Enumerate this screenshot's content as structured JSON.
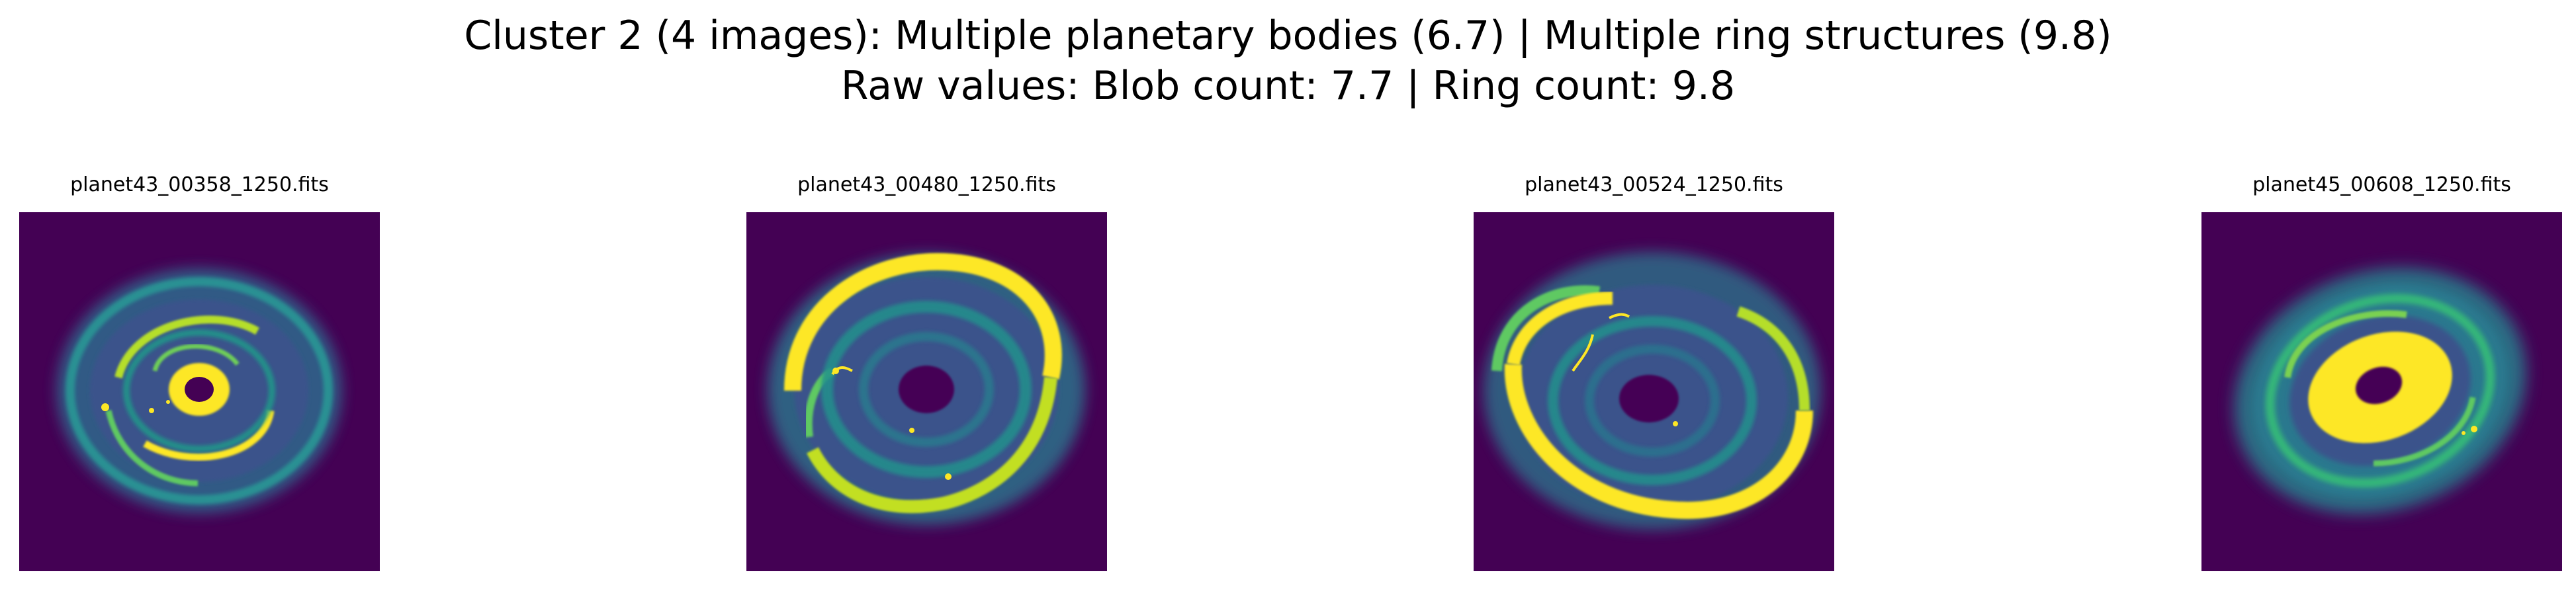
{
  "figure": {
    "title_line1": "Cluster 2 (4 images): Multiple planetary bodies (6.7) | Multiple ring structures (9.8)",
    "title_line2": "Raw values: Blob count: 7.7 | Ring count: 9.8"
  },
  "panels": [
    {
      "filename": "planet43_00358_1250.fits"
    },
    {
      "filename": "planet43_00480_1250.fits"
    },
    {
      "filename": "planet43_00524_1250.fits"
    },
    {
      "filename": "planet45_00608_1250.fits"
    }
  ],
  "colors": {
    "background_dark": "#440154",
    "mid_teal": "#21918c",
    "mid_blue": "#3b528b",
    "bright_green": "#5ec962",
    "bright_yellow": "#fde725"
  }
}
